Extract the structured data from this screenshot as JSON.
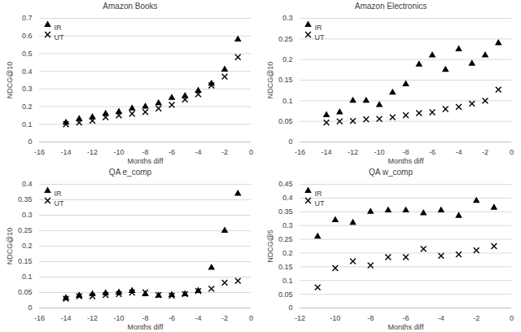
{
  "chart_data": [
    {
      "type": "scatter",
      "title": "Amazon Books",
      "x_label": "Months diff",
      "y_label": "NDCG@10",
      "x": [
        -14,
        -13,
        -12,
        -11,
        -10,
        -9,
        -8,
        -7,
        -6,
        -5,
        -4,
        -3,
        -2,
        -1
      ],
      "series": [
        {
          "name": "IR",
          "color": "#000000",
          "marker": "triangle",
          "values": [
            0.11,
            0.13,
            0.14,
            0.16,
            0.17,
            0.19,
            0.2,
            0.22,
            0.25,
            0.26,
            0.29,
            0.33,
            0.41,
            0.58
          ]
        },
        {
          "name": "UT",
          "color": "#000000",
          "marker": "x",
          "values": [
            0.1,
            0.11,
            0.12,
            0.14,
            0.15,
            0.16,
            0.17,
            0.19,
            0.21,
            0.24,
            0.27,
            0.32,
            0.37,
            0.48
          ]
        }
      ],
      "xlim": [
        -16,
        0
      ],
      "xticks": [
        -16,
        -14,
        -12,
        -10,
        -8,
        -6,
        -4,
        -2,
        0
      ],
      "ylim": [
        0,
        0.7
      ],
      "yticks": [
        0,
        0.1,
        0.2,
        0.3,
        0.4,
        0.5,
        0.6,
        0.7
      ],
      "grid": true,
      "legend": "top-left"
    },
    {
      "type": "scatter",
      "title": "Amazon Electronics",
      "x_label": "Months diff",
      "y_label": "NDCG@10",
      "x": [
        -14,
        -13,
        -12,
        -11,
        -10,
        -9,
        -8,
        -7,
        -6,
        -5,
        -4,
        -3,
        -2,
        -1
      ],
      "series": [
        {
          "name": "IR",
          "color": "#000000",
          "marker": "triangle",
          "values": [
            0.065,
            0.072,
            0.1,
            0.1,
            0.09,
            0.12,
            0.14,
            0.188,
            0.21,
            0.175,
            0.225,
            0.19,
            0.21,
            0.24
          ]
        },
        {
          "name": "UT",
          "color": "#000000",
          "marker": "x",
          "values": [
            0.047,
            0.05,
            0.051,
            0.055,
            0.056,
            0.06,
            0.065,
            0.07,
            0.072,
            0.08,
            0.085,
            0.093,
            0.1,
            0.127
          ]
        }
      ],
      "xlim": [
        -16,
        0
      ],
      "xticks": [
        -16,
        -14,
        -12,
        -10,
        -8,
        -6,
        -4,
        -2,
        0
      ],
      "ylim": [
        0,
        0.3
      ],
      "yticks": [
        0,
        0.05,
        0.1,
        0.15,
        0.2,
        0.25,
        0.3
      ],
      "grid": true,
      "legend": "top-left"
    },
    {
      "type": "scatter",
      "title": "QA e_comp",
      "x_label": "Months diff",
      "y_label": "NDCG@10",
      "x": [
        -14,
        -13,
        -12,
        -11,
        -10,
        -9,
        -8,
        -7,
        -6,
        -5,
        -4,
        -3,
        -2,
        -1
      ],
      "series": [
        {
          "name": "IR",
          "color": "#000000",
          "marker": "triangle",
          "values": [
            0.032,
            0.04,
            0.045,
            0.048,
            0.05,
            0.055,
            0.045,
            0.04,
            0.042,
            0.045,
            0.055,
            0.13,
            0.25,
            0.37
          ]
        },
        {
          "name": "UT",
          "color": "#000000",
          "marker": "x",
          "values": [
            0.03,
            0.038,
            0.038,
            0.042,
            0.045,
            0.05,
            0.05,
            0.042,
            0.04,
            0.045,
            0.055,
            0.062,
            0.082,
            0.088
          ]
        }
      ],
      "xlim": [
        -16,
        0
      ],
      "xticks": [
        -16,
        -14,
        -12,
        -10,
        -8,
        -6,
        -4,
        -2,
        0
      ],
      "ylim": [
        0,
        0.4
      ],
      "yticks": [
        0,
        0.05,
        0.1,
        0.15,
        0.2,
        0.25,
        0.3,
        0.35,
        0.4
      ],
      "grid": true,
      "legend": "top-left"
    },
    {
      "type": "scatter",
      "title": "QA w_comp",
      "x_label": "Months diff",
      "y_label": "NDCG@5",
      "x": [
        -11,
        -10,
        -9,
        -8,
        -7,
        -6,
        -5,
        -4,
        -3,
        -2,
        -1
      ],
      "series": [
        {
          "name": "IR",
          "color": "#000000",
          "marker": "triangle",
          "values": [
            0.26,
            0.32,
            0.31,
            0.35,
            0.355,
            0.355,
            0.345,
            0.355,
            0.335,
            0.39,
            0.365
          ]
        },
        {
          "name": "UT",
          "color": "#000000",
          "marker": "x",
          "values": [
            0.075,
            0.145,
            0.17,
            0.155,
            0.185,
            0.185,
            0.215,
            0.19,
            0.195,
            0.21,
            0.225
          ]
        }
      ],
      "xlim": [
        -12,
        0
      ],
      "xticks": [
        -12,
        -10,
        -8,
        -6,
        -4,
        -2,
        0
      ],
      "ylim": [
        0,
        0.45
      ],
      "yticks": [
        0,
        0.05,
        0.1,
        0.15,
        0.2,
        0.25,
        0.3,
        0.35,
        0.4,
        0.45
      ],
      "grid": true,
      "legend": "top-left"
    }
  ]
}
